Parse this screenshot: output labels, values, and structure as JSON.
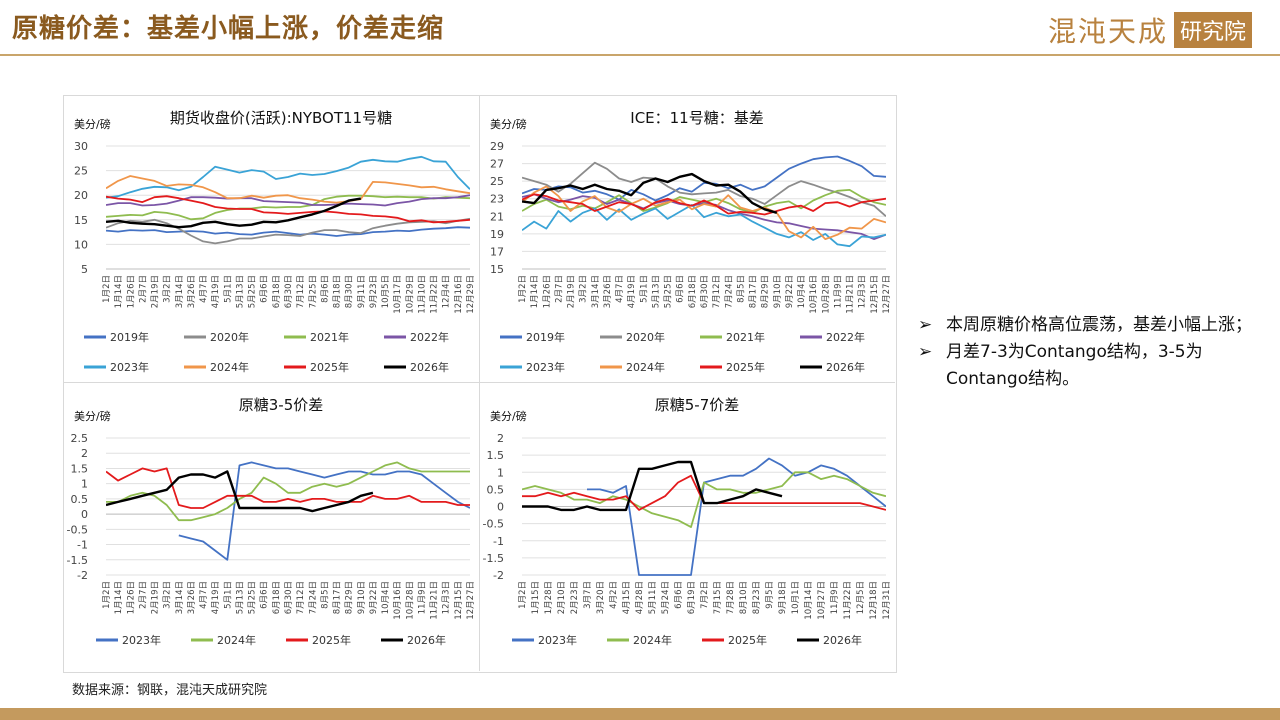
{
  "header": {
    "title": "原糖价差：基差小幅上涨，价差走缩",
    "logo_text": "混沌天成",
    "logo_box": "研究院"
  },
  "bullets": [
    "本周原糖价格高位震荡，基差小幅上涨；",
    "月差7-3为Contango结构，3-5为Contango结构。"
  ],
  "source": "数据来源：钢联，混沌天成研究院",
  "colors": {
    "2019年": "#4472c4",
    "2020年": "#8c8c8c",
    "2021年": "#8fbc4f",
    "2022年": "#7b55a6",
    "2023年": "#3aa3d6",
    "2024年": "#f0964a",
    "2025年": "#e31a1c",
    "2026年": "#000000",
    "2023年_diff": "#4472c4",
    "2024年_diff": "#8fbc4f"
  },
  "chart_data": [
    {
      "id": "c1",
      "type": "line",
      "title": "期货收盘价(活跃):NYBOT11号糖",
      "unit_label": "美分/磅",
      "ylim": [
        5,
        30
      ],
      "yticks": [
        5,
        10,
        15,
        20,
        25,
        30
      ],
      "x_categories": [
        "1月2日",
        "1月14日",
        "1月26日",
        "2月7日",
        "2月19日",
        "3月2日",
        "3月14日",
        "3月26日",
        "4月7日",
        "4月19日",
        "5月1日",
        "5月13日",
        "5月25日",
        "6月6日",
        "6月18日",
        "6月30日",
        "7月12日",
        "7月25日",
        "8月6日",
        "8月18日",
        "8月30日",
        "9月11日",
        "9月23日",
        "10月5日",
        "10月17日",
        "10月29日",
        "11月10日",
        "11月22日",
        "12月4日",
        "12月16日",
        "12月29日"
      ],
      "legend": [
        "2019年",
        "2020年",
        "2021年",
        "2022年",
        "2023年",
        "2024年",
        "2025年",
        "2026年"
      ],
      "series": [
        {
          "name": "2019年",
          "values": [
            12.8,
            12.6,
            12.9,
            12.8,
            12.9,
            12.5,
            12.6,
            12.7,
            12.6,
            12.2,
            12.4,
            12.1,
            12.0,
            12.4,
            12.6,
            12.3,
            12.0,
            12.2,
            12.0,
            11.7,
            12.0,
            12.1,
            12.5,
            12.6,
            12.8,
            12.7,
            13.0,
            13.2,
            13.3,
            13.5,
            13.4
          ]
        },
        {
          "name": "2020年",
          "values": [
            13.4,
            14.3,
            14.8,
            14.6,
            15.0,
            14.3,
            13.2,
            11.8,
            10.6,
            10.2,
            10.6,
            11.2,
            11.2,
            11.6,
            12.0,
            11.9,
            11.7,
            12.4,
            12.9,
            12.9,
            12.5,
            12.3,
            13.3,
            13.8,
            14.2,
            14.5,
            14.6,
            14.7,
            14.3,
            14.8,
            15.2
          ]
        },
        {
          "name": "2021年",
          "values": [
            15.6,
            15.8,
            16.0,
            15.9,
            16.6,
            16.4,
            15.9,
            15.1,
            15.3,
            16.4,
            17.0,
            17.3,
            17.3,
            17.6,
            17.5,
            17.6,
            17.6,
            18.0,
            19.2,
            19.7,
            19.9,
            19.9,
            19.8,
            19.6,
            19.7,
            19.6,
            19.6,
            19.3,
            19.6,
            19.5,
            19.4
          ]
        },
        {
          "name": "2022年",
          "values": [
            18.0,
            18.4,
            18.4,
            17.9,
            18.0,
            18.3,
            18.9,
            19.6,
            19.6,
            19.5,
            19.3,
            19.4,
            19.4,
            18.8,
            18.7,
            18.6,
            18.5,
            18.0,
            18.0,
            18.1,
            18.3,
            18.2,
            18.1,
            17.9,
            18.4,
            18.7,
            19.2,
            19.4,
            19.4,
            19.6,
            20.0
          ]
        },
        {
          "name": "2023年",
          "values": [
            19.5,
            19.8,
            20.6,
            21.3,
            21.7,
            21.6,
            21.0,
            21.7,
            23.7,
            25.8,
            25.2,
            24.6,
            25.1,
            24.8,
            23.3,
            23.7,
            24.4,
            24.1,
            24.3,
            24.9,
            25.6,
            26.8,
            27.2,
            26.9,
            26.8,
            27.4,
            27.8,
            26.9,
            26.8,
            23.7,
            21.2
          ]
        },
        {
          "name": "2024年",
          "values": [
            21.4,
            22.9,
            23.9,
            23.4,
            22.9,
            21.9,
            22.2,
            22.1,
            21.6,
            20.6,
            19.4,
            19.4,
            19.9,
            19.5,
            19.9,
            20.0,
            19.4,
            19.1,
            18.7,
            18.5,
            18.8,
            19.2,
            22.7,
            22.6,
            22.3,
            22.0,
            21.6,
            21.7,
            21.2,
            20.8,
            20.4
          ]
        },
        {
          "name": "2025年",
          "values": [
            19.7,
            19.3,
            19.1,
            18.6,
            19.6,
            19.8,
            19.4,
            18.9,
            18.4,
            17.6,
            17.3,
            17.2,
            17.2,
            16.5,
            16.4,
            16.2,
            16.4,
            16.6,
            16.7,
            16.5,
            16.2,
            16.1,
            15.8,
            15.7,
            15.4,
            14.7,
            14.9,
            14.5,
            14.6,
            14.8,
            15.0
          ]
        },
        {
          "name": "2026年",
          "values": [
            14.6,
            14.8,
            14.4,
            14.2,
            14.1,
            13.8,
            13.5,
            13.7,
            14.4,
            14.6,
            14.1,
            13.8,
            14.0,
            14.6,
            14.5,
            14.9,
            15.5,
            16.1,
            16.8,
            17.8,
            18.9,
            19.3
          ]
        }
      ]
    },
    {
      "id": "c2",
      "type": "line",
      "title": "ICE：11号糖：基差",
      "unit_label": "美分/磅",
      "ylim": [
        15,
        29
      ],
      "yticks": [
        15,
        17,
        19,
        21,
        23,
        25,
        27,
        29
      ],
      "x_categories": [
        "1月2日",
        "1月14日",
        "1月26日",
        "2月7日",
        "2月19日",
        "3月2日",
        "3月14日",
        "3月26日",
        "4月7日",
        "4月19日",
        "5月1日",
        "5月13日",
        "5月25日",
        "6月6日",
        "6月18日",
        "6月30日",
        "7月12日",
        "7月24日",
        "8月5日",
        "8月17日",
        "8月29日",
        "9月10日",
        "9月22日",
        "10月4日",
        "10月16日",
        "10月28日",
        "11月9日",
        "11月21日",
        "12月3日",
        "12月15日",
        "12月27日"
      ],
      "legend": [
        "2019年",
        "2020年",
        "2021年",
        "2022年",
        "2023年",
        "2024年",
        "2025年",
        "2026年"
      ],
      "series": [
        {
          "name": "2019年",
          "values": [
            23.6,
            24.1,
            24.0,
            24.4,
            24.3,
            23.7,
            23.9,
            23.5,
            22.9,
            24.0,
            23.5,
            22.8,
            23.4,
            24.2,
            23.8,
            24.8,
            24.7,
            24.2,
            24.6,
            24.0,
            24.4,
            25.4,
            26.4,
            27.0,
            27.5,
            27.7,
            27.8,
            27.3,
            26.7,
            25.6,
            25.5
          ]
        },
        {
          "name": "2020年",
          "values": [
            25.4,
            25.0,
            24.6,
            23.8,
            24.7,
            25.9,
            27.1,
            26.4,
            25.3,
            24.9,
            25.4,
            25.3,
            24.4,
            23.7,
            23.5,
            23.6,
            23.7,
            24.0,
            23.3,
            23.0,
            22.4,
            23.4,
            24.4,
            25.0,
            24.6,
            24.1,
            23.7,
            23.2,
            22.6,
            22.2,
            21.0
          ]
        },
        {
          "name": "2021年",
          "values": [
            21.6,
            22.4,
            22.9,
            22.1,
            21.8,
            22.2,
            21.9,
            22.6,
            23.4,
            22.5,
            21.6,
            22.0,
            22.5,
            23.2,
            22.9,
            22.6,
            23.0,
            22.5,
            21.8,
            21.4,
            22.1,
            22.5,
            22.7,
            21.9,
            22.8,
            23.4,
            23.9,
            24.0,
            23.2,
            22.6,
            22.3
          ]
        },
        {
          "name": "2022年",
          "values": [
            23.2,
            23.5,
            23.0,
            22.6,
            22.9,
            23.3,
            23.1,
            22.4,
            22.9,
            22.4,
            21.9,
            22.5,
            22.8,
            22.4,
            22.2,
            22.5,
            22.3,
            21.7,
            21.3,
            21.0,
            20.6,
            20.3,
            20.2,
            19.9,
            19.6,
            19.5,
            19.4,
            19.2,
            19.0,
            18.4,
            18.9
          ]
        },
        {
          "name": "2023年",
          "values": [
            19.4,
            20.4,
            19.6,
            21.6,
            20.4,
            21.4,
            21.9,
            20.6,
            21.8,
            20.6,
            21.3,
            21.9,
            20.7,
            21.5,
            22.3,
            20.9,
            21.4,
            21.0,
            21.2,
            20.4,
            19.7,
            19.0,
            18.6,
            19.2,
            18.3,
            19.0,
            17.8,
            17.6,
            18.7,
            18.6,
            18.9
          ]
        },
        {
          "name": "2024年",
          "values": [
            22.6,
            23.7,
            24.4,
            23.3,
            21.6,
            22.7,
            23.3,
            22.0,
            21.5,
            22.4,
            23.0,
            22.2,
            22.6,
            22.9,
            21.8,
            22.4,
            22.1,
            23.4,
            22.0,
            21.6,
            22.0,
            21.4,
            19.3,
            18.6,
            19.8,
            18.4,
            18.9,
            19.7,
            19.6,
            20.7,
            20.3
          ]
        },
        {
          "name": "2025年",
          "values": [
            22.9,
            23.5,
            23.3,
            22.8,
            22.6,
            22.4,
            21.6,
            22.1,
            22.6,
            22.4,
            21.8,
            22.6,
            23.0,
            22.5,
            22.2,
            22.8,
            22.2,
            21.3,
            21.5,
            21.4,
            21.2,
            21.6,
            22.0,
            22.2,
            21.6,
            22.5,
            22.6,
            22.1,
            22.6,
            22.8,
            23.0
          ]
        },
        {
          "name": "2026年",
          "values": [
            22.7,
            22.5,
            24.0,
            24.2,
            24.5,
            24.1,
            24.6,
            24.1,
            23.9,
            23.4,
            24.8,
            25.3,
            24.9,
            25.5,
            25.8,
            25.0,
            24.5,
            24.6,
            23.8,
            22.5,
            21.8,
            21.4
          ]
        }
      ]
    },
    {
      "id": "c3",
      "type": "line",
      "title": "原糖3-5价差",
      "unit_label": "美分/磅",
      "ylim": [
        -2,
        2.5
      ],
      "yticks": [
        -2,
        -1.5,
        -1,
        -0.5,
        0,
        0.5,
        1,
        1.5,
        2,
        2.5
      ],
      "x_categories": [
        "1月2日",
        "1月14日",
        "1月26日",
        "2月7日",
        "2月19日",
        "3月2日",
        "3月14日",
        "3月26日",
        "4月7日",
        "4月19日",
        "5月1日",
        "5月13日",
        "5月25日",
        "6月6日",
        "6月18日",
        "6月30日",
        "7月12日",
        "7月24日",
        "8月5日",
        "8月17日",
        "8月29日",
        "9月10日",
        "9月22日",
        "10月4日",
        "10月16日",
        "10月28日",
        "11月9日",
        "11月21日",
        "12月3日",
        "12月15日",
        "12月27日"
      ],
      "legend": [
        "2023年",
        "2024年",
        "2025年",
        "2026年"
      ],
      "series": [
        {
          "name": "2023年",
          "values": [
            null,
            null,
            null,
            null,
            null,
            null,
            -0.7,
            -0.8,
            -0.9,
            -1.2,
            -1.5,
            1.6,
            1.7,
            1.6,
            1.5,
            1.5,
            1.4,
            1.3,
            1.2,
            1.3,
            1.4,
            1.4,
            1.3,
            1.3,
            1.4,
            1.4,
            1.3,
            1.0,
            0.7,
            0.4,
            0.2
          ]
        },
        {
          "name": "2024年",
          "values": [
            0.4,
            0.4,
            0.6,
            0.7,
            0.6,
            0.3,
            -0.2,
            -0.2,
            -0.1,
            0.0,
            0.2,
            0.5,
            0.7,
            1.2,
            1.0,
            0.7,
            0.7,
            0.9,
            1.0,
            0.9,
            1.0,
            1.2,
            1.4,
            1.6,
            1.7,
            1.5,
            1.4,
            1.4,
            1.4,
            1.4,
            1.4
          ]
        },
        {
          "name": "2025年",
          "values": [
            1.4,
            1.1,
            1.3,
            1.5,
            1.4,
            1.5,
            0.3,
            0.2,
            0.2,
            0.4,
            0.6,
            0.6,
            0.6,
            0.4,
            0.4,
            0.5,
            0.4,
            0.5,
            0.5,
            0.4,
            0.4,
            0.4,
            0.6,
            0.5,
            0.5,
            0.6,
            0.4,
            0.4,
            0.4,
            0.3,
            0.3
          ]
        },
        {
          "name": "2026年",
          "values": [
            0.3,
            0.4,
            0.5,
            0.6,
            0.7,
            0.8,
            1.2,
            1.3,
            1.3,
            1.2,
            1.4,
            0.2,
            0.2,
            0.2,
            0.2,
            0.2,
            0.2,
            0.1,
            0.2,
            0.3,
            0.4,
            0.6,
            0.7
          ]
        }
      ]
    },
    {
      "id": "c4",
      "type": "line",
      "title": "原糖5-7价差",
      "unit_label": "美分/磅",
      "ylim": [
        -2,
        2
      ],
      "yticks": [
        -2,
        -1.5,
        -1,
        -0.5,
        0,
        0.5,
        1,
        1.5,
        2
      ],
      "x_categories": [
        "1月2日",
        "1月15日",
        "1月28日",
        "2月10日",
        "2月23日",
        "3月7日",
        "3月20日",
        "4月2日",
        "4月15日",
        "4月28日",
        "5月11日",
        "5月24日",
        "6月6日",
        "6月19日",
        "7月2日",
        "7月15日",
        "7月28日",
        "8月10日",
        "8月23日",
        "9月5日",
        "9月18日",
        "10月1日",
        "10月14日",
        "10月27日",
        "11月9日",
        "11月22日",
        "12月5日",
        "12月18日",
        "12月31日"
      ],
      "legend": [
        "2023年",
        "2024年",
        "2025年",
        "2026年"
      ],
      "series": [
        {
          "name": "2023年",
          "values": [
            null,
            null,
            null,
            null,
            null,
            0.5,
            0.5,
            0.4,
            0.6,
            -2.0,
            -2.0,
            -2.0,
            -2.0,
            -2.0,
            0.7,
            0.8,
            0.9,
            0.9,
            1.1,
            1.4,
            1.2,
            0.9,
            1.0,
            1.2,
            1.1,
            0.9,
            0.6,
            0.3,
            0.0
          ]
        },
        {
          "name": "2024年",
          "values": [
            0.5,
            0.6,
            0.5,
            0.4,
            0.2,
            0.2,
            0.1,
            0.3,
            0.2,
            0.0,
            -0.2,
            -0.3,
            -0.4,
            -0.6,
            0.7,
            0.5,
            0.5,
            0.4,
            0.4,
            0.5,
            0.6,
            1.0,
            1.0,
            0.8,
            0.9,
            0.8,
            0.6,
            0.4,
            0.3
          ]
        },
        {
          "name": "2025年",
          "values": [
            0.3,
            0.3,
            0.4,
            0.3,
            0.4,
            0.3,
            0.2,
            0.2,
            0.3,
            -0.1,
            0.1,
            0.3,
            0.7,
            0.9,
            0.1,
            0.1,
            0.1,
            0.1,
            0.1,
            0.1,
            0.1,
            0.1,
            0.1,
            0.1,
            0.1,
            0.1,
            0.1,
            0.0,
            -0.1
          ]
        },
        {
          "name": "2026年",
          "values": [
            0.0,
            0.0,
            0.0,
            -0.1,
            -0.1,
            0.0,
            -0.1,
            -0.1,
            -0.1,
            1.1,
            1.1,
            1.2,
            1.3,
            1.3,
            0.1,
            0.1,
            0.2,
            0.3,
            0.5,
            0.4,
            0.3
          ]
        }
      ]
    }
  ]
}
